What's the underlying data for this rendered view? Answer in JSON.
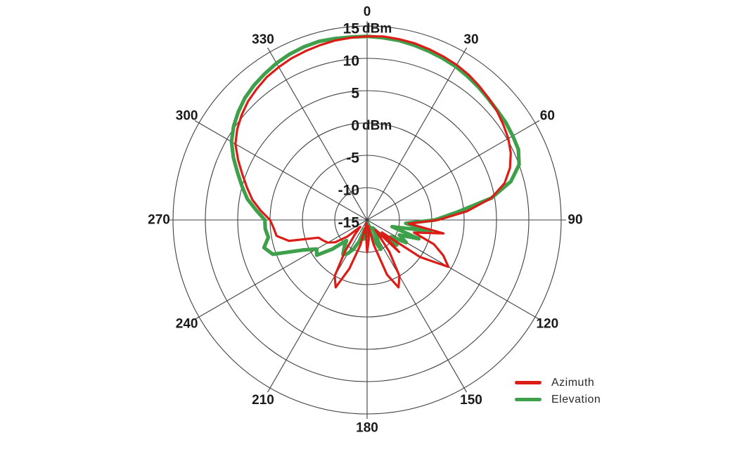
{
  "chart_data": {
    "type": "line",
    "polar": true,
    "title": "",
    "units": "dBm",
    "r_min": -15,
    "r_max": 15,
    "r_step": 5,
    "angle_step_deg": 30,
    "angle_labels": [
      "0",
      "30",
      "60",
      "90",
      "120",
      "150",
      "180",
      "210",
      "240",
      "270",
      "300",
      "330"
    ],
    "radial_ticks": [
      {
        "value": 15,
        "num": "15",
        "unit": "dBm"
      },
      {
        "value": 10,
        "num": "10",
        "unit": ""
      },
      {
        "value": 5,
        "num": "5",
        "unit": ""
      },
      {
        "value": 0,
        "num": "0",
        "unit": "dBm"
      },
      {
        "value": -5,
        "num": "-5",
        "unit": ""
      },
      {
        "value": -10,
        "num": "-10",
        "unit": ""
      },
      {
        "value": -15,
        "num": "-15",
        "unit": ""
      }
    ],
    "angles_deg": [
      0,
      5,
      10,
      15,
      20,
      25,
      30,
      35,
      40,
      45,
      50,
      55,
      60,
      65,
      70,
      75,
      80,
      85,
      90,
      95,
      100,
      105,
      110,
      115,
      120,
      125,
      130,
      135,
      140,
      145,
      150,
      155,
      160,
      165,
      170,
      175,
      180,
      185,
      190,
      195,
      200,
      205,
      210,
      215,
      220,
      225,
      230,
      235,
      240,
      245,
      250,
      255,
      260,
      265,
      270,
      275,
      280,
      285,
      290,
      295,
      300,
      305,
      310,
      315,
      320,
      325,
      330,
      335,
      340,
      345,
      350,
      355
    ],
    "series": [
      {
        "name": "Azimuth",
        "color": "#dc1d17",
        "stroke_width": 3.2,
        "values": [
          13.4,
          13.5,
          13.4,
          13.3,
          13.1,
          12.9,
          12.7,
          12.4,
          12.0,
          11.6,
          11.2,
          10.7,
          10.2,
          9.5,
          8.5,
          7.0,
          4.5,
          0.5,
          -4.0,
          -8.5,
          -3.0,
          -7.5,
          -4.0,
          -2.0,
          -0.5,
          -5.0,
          -12.0,
          -8.0,
          -13.0,
          -9.0,
          -5.0,
          -3.5,
          -6.0,
          -11.0,
          -14.0,
          -12.0,
          -10.0,
          -13.0,
          -14.5,
          -11.0,
          -7.0,
          -3.5,
          -5.0,
          -9.0,
          -12.0,
          -13.5,
          -11.0,
          -9.0,
          -8.0,
          -7.5,
          -7.0,
          -2.5,
          -0.8,
          -0.5,
          0.0,
          1.5,
          3.0,
          4.2,
          5.5,
          7.0,
          8.5,
          9.5,
          10.3,
          11.0,
          11.5,
          12.0,
          12.3,
          12.6,
          12.8,
          13.0,
          13.2,
          13.3
        ]
      },
      {
        "name": "Elevation",
        "color": "#3ea04b",
        "stroke_width": 5.2,
        "values": [
          13.4,
          13.3,
          13.2,
          13.0,
          12.8,
          12.6,
          12.4,
          12.1,
          11.8,
          11.5,
          11.3,
          11.2,
          11.0,
          10.8,
          10.0,
          8.0,
          4.5,
          -1.0,
          -4.5,
          -9.0,
          -5.0,
          -11.0,
          -6.5,
          -9.5,
          -8.0,
          -10.5,
          -9.0,
          -11.5,
          -12.5,
          -13.5,
          -12.0,
          -10.0,
          -11.5,
          -13.0,
          -14.5,
          -13.5,
          -12.5,
          -14.0,
          -12.0,
          -13.5,
          -11.5,
          -10.0,
          -9.0,
          -8.5,
          -9.5,
          -10.5,
          -8.0,
          -5.5,
          -6.0,
          -4.0,
          0.5,
          1.5,
          0.5,
          0.8,
          0.8,
          2.2,
          3.8,
          5.0,
          6.3,
          7.8,
          9.2,
          10.2,
          11.0,
          11.7,
          12.2,
          12.6,
          13.0,
          13.3,
          13.5,
          13.6,
          13.5,
          13.4
        ]
      }
    ],
    "legend": {
      "position": "bottom-right",
      "entries": [
        "Azimuth",
        "Elevation"
      ]
    }
  },
  "colors": {
    "grid": "#404040",
    "label": "#1a1a1a",
    "background": "#ffffff"
  }
}
